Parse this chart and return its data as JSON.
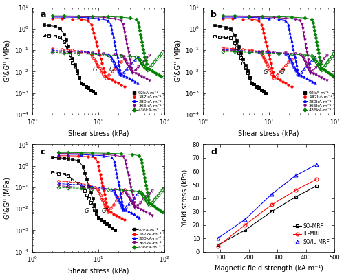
{
  "colors_list": [
    "black",
    "red",
    "blue",
    "purple",
    "green"
  ],
  "filled_markers": [
    "s",
    "o",
    "^",
    "v",
    "D"
  ],
  "open_markers": [
    "s",
    "o",
    "^",
    "v",
    "D"
  ],
  "field_labels": [
    "92kA·m⁻¹",
    "187kA·m⁻¹",
    "280kA·m⁻¹",
    "365kA·m⁻¹",
    "436kA·m⁻¹"
  ],
  "xlabel_abc": "Shear stress (kPa)",
  "ylabel_abc": "G'&G’’ (MPa)",
  "xlabel_d": "Magnetic field strength (kA·m⁻¹)",
  "ylabel_d": "Yield stress (kPa)",
  "panel_labels": [
    "a",
    "b",
    "c",
    "d"
  ],
  "panel_d": {
    "x": [
      92,
      187,
      280,
      365,
      436
    ],
    "SO_MRF": [
      5,
      16,
      30,
      41,
      49
    ],
    "IL_MRF": [
      4,
      20,
      35,
      46,
      54
    ],
    "SO_IL_MRF": [
      10,
      24,
      43,
      57,
      65
    ],
    "legend": [
      "SO-MRF",
      "IL-MRF",
      "SO/IL-MRF"
    ],
    "colors": [
      "black",
      "red",
      "blue"
    ],
    "markers": [
      "s",
      "o",
      "^"
    ],
    "ylim": [
      0,
      80
    ],
    "xlim": [
      40,
      500
    ],
    "xticks": [
      100,
      200,
      300,
      400,
      500
    ]
  },
  "background": "#f5f5f5"
}
